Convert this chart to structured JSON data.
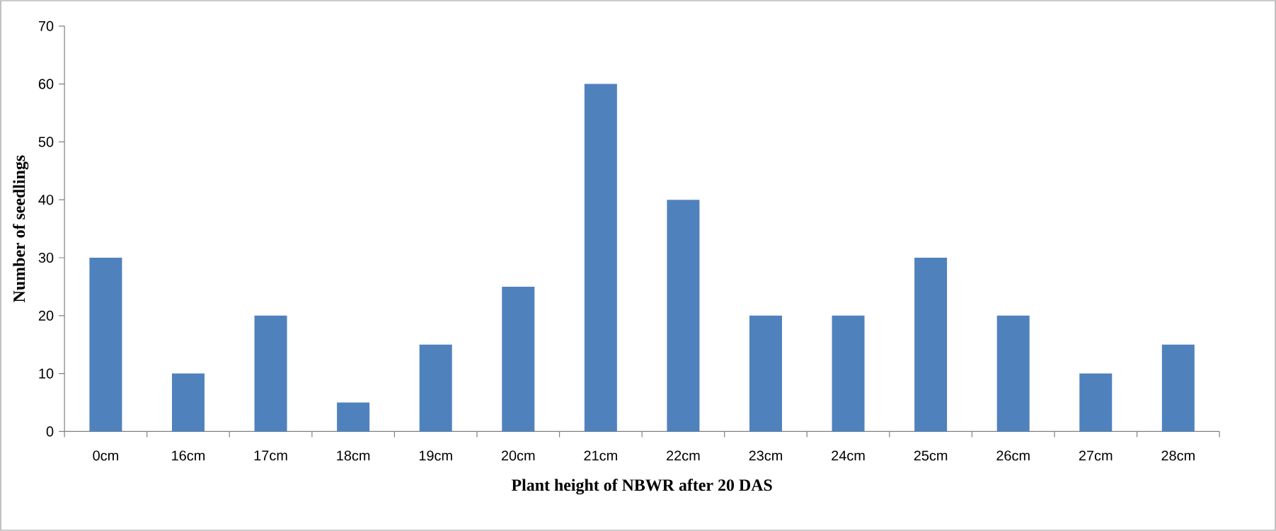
{
  "chart_data": {
    "type": "bar",
    "xlabel": "Plant height of NBWR after 20 DAS",
    "ylabel": "Number of seedlings",
    "categories": [
      "0cm",
      "16cm",
      "17cm",
      "18cm",
      "19cm",
      "20cm",
      "21cm",
      "22cm",
      "23cm",
      "24cm",
      "25cm",
      "26cm",
      "27cm",
      "28cm"
    ],
    "values": [
      30,
      10,
      20,
      5,
      15,
      25,
      60,
      40,
      20,
      20,
      30,
      20,
      10,
      15
    ],
    "color": "#4f81bd",
    "ylim": [
      0,
      70
    ],
    "yticks": [
      0,
      10,
      20,
      30,
      40,
      50,
      60,
      70
    ]
  }
}
